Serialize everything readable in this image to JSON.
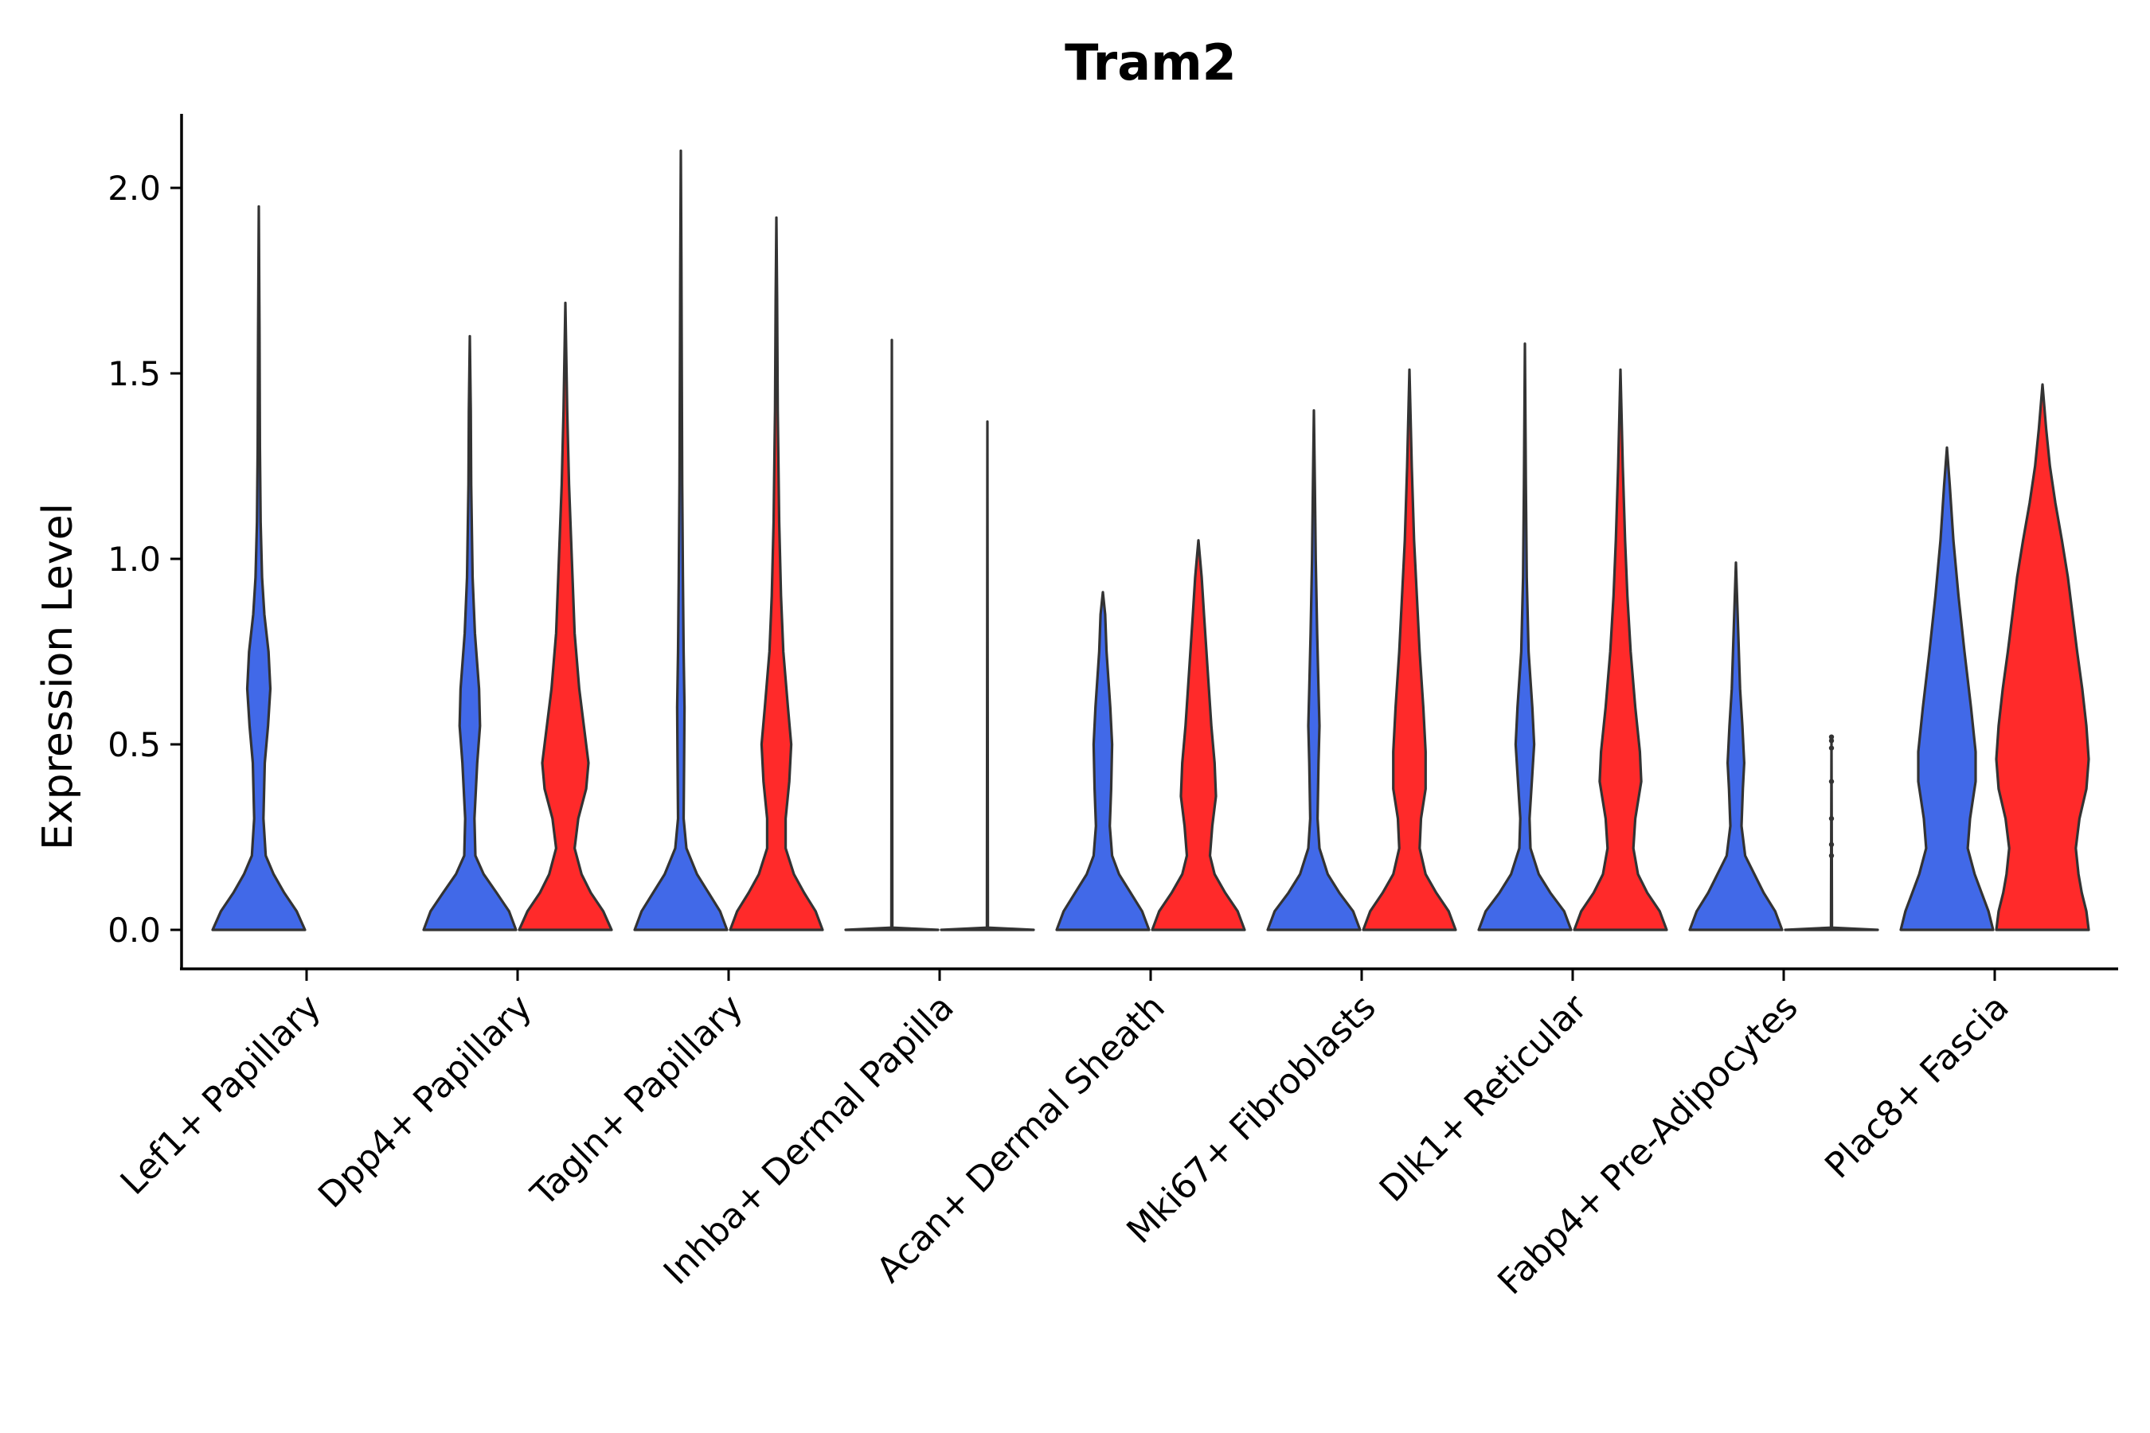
{
  "chart_data": {
    "type": "violin",
    "title": "Tram2",
    "xlabel": "",
    "ylabel": "Expression Level",
    "ylim": [
      -0.1,
      2.2
    ],
    "yticks": [
      "0.0",
      "0.5",
      "1.0",
      "1.5",
      "2.0"
    ],
    "ytick_values": [
      0,
      0.5,
      1,
      1.5,
      2
    ],
    "categories": [
      "Lef1+ Papillary",
      "Dpp4+ Papillary",
      "Tagln+ Papillary",
      "Inhba+ Dermal Papilla",
      "Acan+ Dermal Sheath",
      "Mki67+ Fibroblasts",
      "Dlk1+ Reticular",
      "Fabp4+ Pre-Adipocytes",
      "Plac8+ Fascia"
    ],
    "series_colors": [
      "#4169E8",
      "#FF2A2A"
    ],
    "violins": [
      {
        "category": "Lef1+ Papillary",
        "group": 0,
        "max": 1.95,
        "profile": [
          [
            0,
            1.0
          ],
          [
            0.05,
            0.82
          ],
          [
            0.1,
            0.55
          ],
          [
            0.15,
            0.32
          ],
          [
            0.2,
            0.15
          ],
          [
            0.3,
            0.1
          ],
          [
            0.45,
            0.13
          ],
          [
            0.55,
            0.2
          ],
          [
            0.65,
            0.25
          ],
          [
            0.75,
            0.21
          ],
          [
            0.85,
            0.12
          ],
          [
            0.95,
            0.07
          ],
          [
            1.1,
            0.04
          ],
          [
            1.3,
            0.025
          ],
          [
            1.6,
            0.015
          ],
          [
            1.95,
            0
          ]
        ]
      },
      {
        "category": "Dpp4+ Papillary",
        "group": 0,
        "max": 1.6,
        "profile": [
          [
            0,
            1.0
          ],
          [
            0.05,
            0.85
          ],
          [
            0.1,
            0.58
          ],
          [
            0.15,
            0.3
          ],
          [
            0.2,
            0.12
          ],
          [
            0.3,
            0.1
          ],
          [
            0.45,
            0.16
          ],
          [
            0.55,
            0.22
          ],
          [
            0.65,
            0.2
          ],
          [
            0.8,
            0.11
          ],
          [
            0.95,
            0.06
          ],
          [
            1.2,
            0.03
          ],
          [
            1.4,
            0.02
          ],
          [
            1.6,
            0
          ]
        ]
      },
      {
        "category": "Dpp4+ Papillary",
        "group": 1,
        "max": 1.69,
        "profile": [
          [
            0,
            1.0
          ],
          [
            0.05,
            0.82
          ],
          [
            0.1,
            0.55
          ],
          [
            0.15,
            0.35
          ],
          [
            0.22,
            0.2
          ],
          [
            0.3,
            0.28
          ],
          [
            0.38,
            0.45
          ],
          [
            0.45,
            0.5
          ],
          [
            0.55,
            0.4
          ],
          [
            0.65,
            0.3
          ],
          [
            0.8,
            0.2
          ],
          [
            1.0,
            0.14
          ],
          [
            1.2,
            0.08
          ],
          [
            1.4,
            0.04
          ],
          [
            1.69,
            0
          ]
        ]
      },
      {
        "category": "Tagln+ Papillary",
        "group": 0,
        "max": 2.1,
        "profile": [
          [
            0,
            1.0
          ],
          [
            0.05,
            0.85
          ],
          [
            0.1,
            0.6
          ],
          [
            0.15,
            0.35
          ],
          [
            0.22,
            0.12
          ],
          [
            0.3,
            0.06
          ],
          [
            0.45,
            0.07
          ],
          [
            0.6,
            0.08
          ],
          [
            0.75,
            0.06
          ],
          [
            0.95,
            0.045
          ],
          [
            1.2,
            0.03
          ],
          [
            1.5,
            0.02
          ],
          [
            1.8,
            0.012
          ],
          [
            2.1,
            0
          ]
        ]
      },
      {
        "category": "Tagln+ Papillary",
        "group": 1,
        "max": 1.92,
        "profile": [
          [
            0,
            1.0
          ],
          [
            0.05,
            0.85
          ],
          [
            0.1,
            0.6
          ],
          [
            0.15,
            0.38
          ],
          [
            0.22,
            0.2
          ],
          [
            0.3,
            0.2
          ],
          [
            0.4,
            0.28
          ],
          [
            0.5,
            0.32
          ],
          [
            0.6,
            0.25
          ],
          [
            0.75,
            0.15
          ],
          [
            0.9,
            0.1
          ],
          [
            1.1,
            0.06
          ],
          [
            1.4,
            0.03
          ],
          [
            1.7,
            0.015
          ],
          [
            1.92,
            0
          ]
        ]
      },
      {
        "category": "Inhba+ Dermal Papilla",
        "group": 0,
        "max": 1.59,
        "profile": [
          [
            0,
            1.0
          ],
          [
            0.003,
            0.5
          ],
          [
            0.006,
            0.01
          ],
          [
            1.59,
            0
          ]
        ]
      },
      {
        "category": "Inhba+ Dermal Papilla",
        "group": 1,
        "max": 1.37,
        "profile": [
          [
            0,
            1.0
          ],
          [
            0.003,
            0.5
          ],
          [
            0.006,
            0.01
          ],
          [
            1.37,
            0
          ]
        ]
      },
      {
        "category": "Acan+ Dermal Sheath",
        "group": 0,
        "max": 0.91,
        "profile": [
          [
            0,
            1.0
          ],
          [
            0.05,
            0.85
          ],
          [
            0.1,
            0.6
          ],
          [
            0.15,
            0.35
          ],
          [
            0.2,
            0.2
          ],
          [
            0.28,
            0.15
          ],
          [
            0.38,
            0.18
          ],
          [
            0.5,
            0.2
          ],
          [
            0.6,
            0.16
          ],
          [
            0.75,
            0.08
          ],
          [
            0.85,
            0.05
          ],
          [
            0.91,
            0
          ]
        ]
      },
      {
        "category": "Acan+ Dermal Sheath",
        "group": 1,
        "max": 1.05,
        "profile": [
          [
            0,
            1.0
          ],
          [
            0.05,
            0.85
          ],
          [
            0.1,
            0.58
          ],
          [
            0.15,
            0.35
          ],
          [
            0.2,
            0.25
          ],
          [
            0.28,
            0.3
          ],
          [
            0.36,
            0.38
          ],
          [
            0.45,
            0.35
          ],
          [
            0.55,
            0.28
          ],
          [
            0.7,
            0.2
          ],
          [
            0.85,
            0.12
          ],
          [
            0.95,
            0.07
          ],
          [
            1.05,
            0
          ]
        ]
      },
      {
        "category": "Mki67+ Fibroblasts",
        "group": 0,
        "max": 1.4,
        "profile": [
          [
            0,
            1.0
          ],
          [
            0.05,
            0.85
          ],
          [
            0.1,
            0.55
          ],
          [
            0.15,
            0.3
          ],
          [
            0.22,
            0.12
          ],
          [
            0.3,
            0.08
          ],
          [
            0.45,
            0.1
          ],
          [
            0.55,
            0.12
          ],
          [
            0.65,
            0.1
          ],
          [
            0.8,
            0.07
          ],
          [
            1.0,
            0.04
          ],
          [
            1.2,
            0.02
          ],
          [
            1.4,
            0
          ]
        ]
      },
      {
        "category": "Mki67+ Fibroblasts",
        "group": 1,
        "max": 1.51,
        "profile": [
          [
            0,
            1.0
          ],
          [
            0.05,
            0.85
          ],
          [
            0.1,
            0.58
          ],
          [
            0.15,
            0.35
          ],
          [
            0.22,
            0.22
          ],
          [
            0.3,
            0.25
          ],
          [
            0.38,
            0.35
          ],
          [
            0.48,
            0.35
          ],
          [
            0.6,
            0.3
          ],
          [
            0.75,
            0.22
          ],
          [
            0.9,
            0.16
          ],
          [
            1.05,
            0.1
          ],
          [
            1.25,
            0.05
          ],
          [
            1.51,
            0
          ]
        ]
      },
      {
        "category": "Dlk1+ Reticular",
        "group": 0,
        "max": 1.58,
        "profile": [
          [
            0,
            1.0
          ],
          [
            0.05,
            0.85
          ],
          [
            0.1,
            0.55
          ],
          [
            0.15,
            0.3
          ],
          [
            0.22,
            0.12
          ],
          [
            0.3,
            0.1
          ],
          [
            0.42,
            0.16
          ],
          [
            0.5,
            0.2
          ],
          [
            0.6,
            0.16
          ],
          [
            0.75,
            0.08
          ],
          [
            0.95,
            0.04
          ],
          [
            1.2,
            0.02
          ],
          [
            1.58,
            0
          ]
        ]
      },
      {
        "category": "Dlk1+ Reticular",
        "group": 1,
        "max": 1.51,
        "profile": [
          [
            0,
            1.0
          ],
          [
            0.05,
            0.85
          ],
          [
            0.1,
            0.58
          ],
          [
            0.15,
            0.38
          ],
          [
            0.22,
            0.28
          ],
          [
            0.3,
            0.32
          ],
          [
            0.4,
            0.45
          ],
          [
            0.48,
            0.42
          ],
          [
            0.6,
            0.32
          ],
          [
            0.75,
            0.22
          ],
          [
            0.9,
            0.15
          ],
          [
            1.05,
            0.1
          ],
          [
            1.25,
            0.05
          ],
          [
            1.51,
            0
          ]
        ]
      },
      {
        "category": "Fabp4+ Pre-Adipocytes",
        "group": 0,
        "max": 0.99,
        "profile": [
          [
            0,
            1.0
          ],
          [
            0.05,
            0.85
          ],
          [
            0.1,
            0.6
          ],
          [
            0.15,
            0.4
          ],
          [
            0.2,
            0.2
          ],
          [
            0.28,
            0.12
          ],
          [
            0.38,
            0.15
          ],
          [
            0.45,
            0.18
          ],
          [
            0.55,
            0.14
          ],
          [
            0.65,
            0.09
          ],
          [
            0.8,
            0.05
          ],
          [
            0.99,
            0
          ]
        ]
      },
      {
        "category": "Fabp4+ Pre-Adipocytes",
        "group": 1,
        "max": 0.52,
        "profile": [
          [
            0,
            1.0
          ],
          [
            0.003,
            0.5
          ],
          [
            0.006,
            0.01
          ],
          [
            0.52,
            0
          ]
        ],
        "points": [
          0.2,
          0.23,
          0.3,
          0.4,
          0.49,
          0.51,
          0.52
        ]
      },
      {
        "category": "Plac8+ Fascia",
        "group": 0,
        "max": 1.3,
        "profile": [
          [
            0,
            1.0
          ],
          [
            0.05,
            0.9
          ],
          [
            0.1,
            0.75
          ],
          [
            0.15,
            0.6
          ],
          [
            0.22,
            0.45
          ],
          [
            0.3,
            0.5
          ],
          [
            0.4,
            0.62
          ],
          [
            0.48,
            0.62
          ],
          [
            0.6,
            0.52
          ],
          [
            0.75,
            0.38
          ],
          [
            0.9,
            0.25
          ],
          [
            1.05,
            0.14
          ],
          [
            1.2,
            0.06
          ],
          [
            1.3,
            0
          ]
        ]
      },
      {
        "category": "Plac8+ Fascia",
        "group": 1,
        "max": 1.47,
        "profile": [
          [
            0,
            1.0
          ],
          [
            0.05,
            0.95
          ],
          [
            0.1,
            0.85
          ],
          [
            0.15,
            0.78
          ],
          [
            0.22,
            0.72
          ],
          [
            0.3,
            0.8
          ],
          [
            0.38,
            0.95
          ],
          [
            0.46,
            1.0
          ],
          [
            0.55,
            0.95
          ],
          [
            0.65,
            0.86
          ],
          [
            0.75,
            0.75
          ],
          [
            0.85,
            0.65
          ],
          [
            0.95,
            0.55
          ],
          [
            1.05,
            0.42
          ],
          [
            1.15,
            0.28
          ],
          [
            1.25,
            0.16
          ],
          [
            1.35,
            0.08
          ],
          [
            1.47,
            0
          ]
        ]
      }
    ]
  }
}
